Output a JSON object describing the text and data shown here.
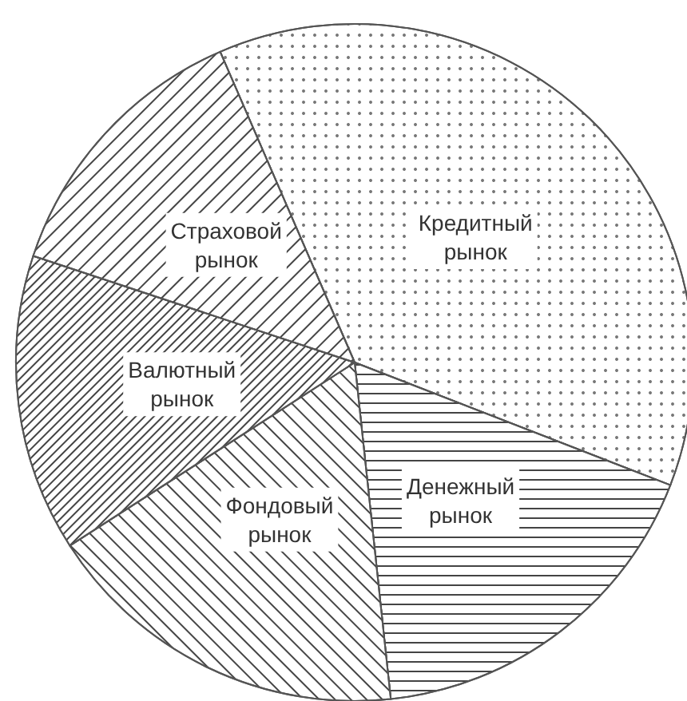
{
  "chart_data": {
    "type": "pie",
    "categories": [
      "Кредитный рынок",
      "Денежный рынок",
      "Фондовый рынок",
      "Валютный рынок",
      "Страховой рынок"
    ],
    "values": [
      37.4,
      17.4,
      17.6,
      14.2,
      13.4
    ],
    "colors": [
      "#ffffff",
      "#ffffff",
      "#ffffff",
      "#ffffff",
      "#ffffff"
    ],
    "legend": false
  }
}
